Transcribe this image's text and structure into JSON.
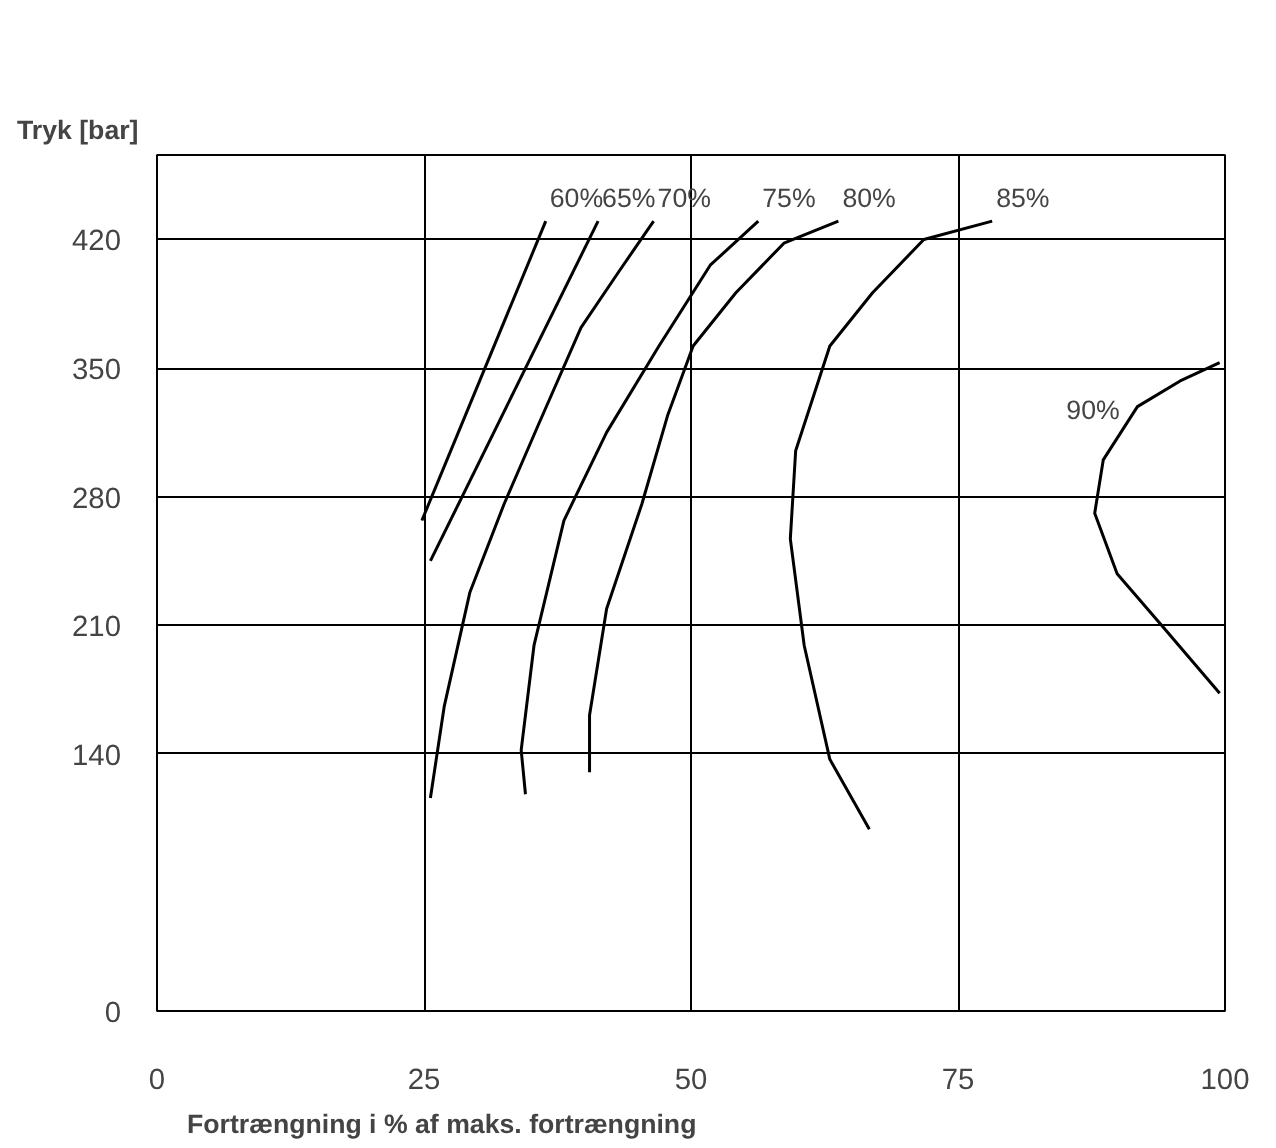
{
  "chart_data": {
    "type": "line",
    "ylabel": "Tryk [bar]",
    "xlabel": "Fortrængning i % af maks.  fortrængning",
    "xlim": [
      0,
      100
    ],
    "xticks": [
      0,
      25,
      50,
      75,
      100
    ],
    "ylim": [
      0,
      466
    ],
    "yticks": [
      0,
      140,
      210,
      280,
      350,
      420
    ],
    "grid": true,
    "marker": "none",
    "line_style": "solid",
    "series": [
      {
        "name": "60%",
        "color": "#000000",
        "x": [
          24.8,
          36.4
        ],
        "values": [
          267,
          430
        ]
      },
      {
        "name": "65%",
        "color": "#000000",
        "x": [
          25.6,
          41.3
        ],
        "values": [
          245,
          430
        ]
      },
      {
        "name": "70%",
        "color": "#000000",
        "x": [
          25.6,
          26.9,
          29.3,
          32.5,
          35.7,
          39.7,
          43.3,
          46.5
        ],
        "values": [
          116,
          166,
          228,
          276,
          319,
          372,
          403,
          430
        ]
      },
      {
        "name": "75%",
        "color": "#000000",
        "x": [
          34.5,
          34.1,
          35.3,
          38.1,
          42.1,
          47.0,
          51.8,
          56.3
        ],
        "values": [
          118,
          142,
          199,
          267,
          315,
          362,
          406,
          430
        ]
      },
      {
        "name": "80%",
        "color": "#000000",
        "x": [
          40.5,
          40.5,
          42.1,
          45.4,
          47.8,
          50.2,
          54.2,
          58.7,
          63.8
        ],
        "values": [
          130,
          161,
          219,
          276,
          324,
          362,
          391,
          418,
          430
        ]
      },
      {
        "name": "85%",
        "color": "#000000",
        "x": [
          66.7,
          63,
          60.6,
          59.3,
          59.8,
          63,
          67,
          71.8,
          78.2
        ],
        "values": [
          99,
          137,
          199,
          257,
          305,
          362,
          391,
          420,
          430
        ]
      },
      {
        "name": "90%",
        "color": "#000000",
        "x": [
          99.5,
          94.2,
          89.9,
          87.8,
          88.6,
          91.8,
          95.8,
          99.5
        ],
        "values": [
          173,
          209,
          238,
          271,
          300,
          329,
          343,
          353
        ]
      }
    ]
  }
}
